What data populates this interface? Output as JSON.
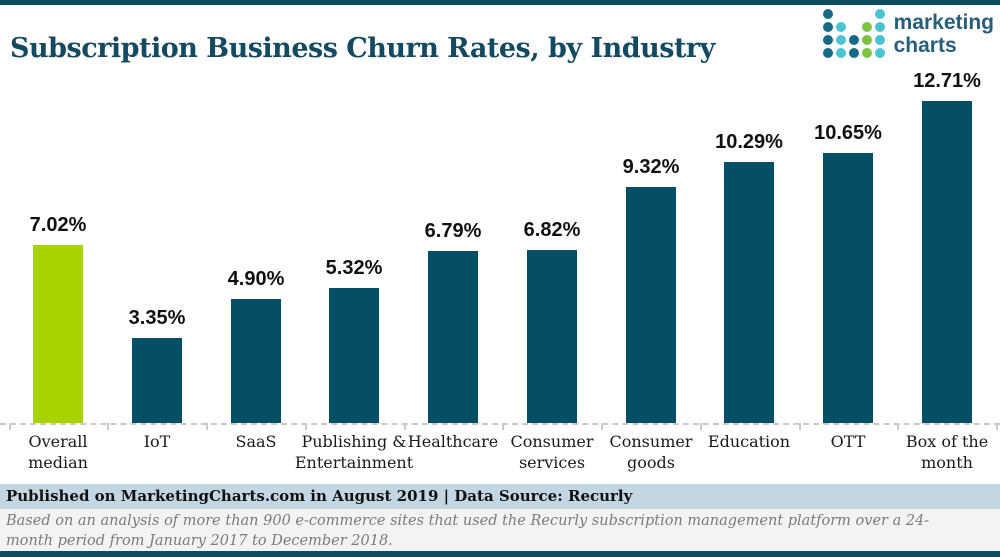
{
  "header": {
    "title": "Subscription Business Churn Rates, by Industry",
    "logo": {
      "line1": "marketing",
      "line2": "charts",
      "dot_colors": {
        "d": "#166A86",
        "t": "#4AC4D3",
        "g": "#7EC241"
      },
      "dots": [
        [
          "d",
          "",
          "",
          "",
          "t"
        ],
        [
          "d",
          "t",
          "",
          "g",
          "t"
        ],
        [
          "d",
          "t",
          "d",
          "g",
          "t"
        ],
        [
          "d",
          "t",
          "d",
          "g",
          "t"
        ]
      ],
      "text_color": "#265E7D"
    }
  },
  "chart_data": {
    "type": "bar",
    "title": "Subscription Business Churn Rates, by Industry",
    "categories": [
      "Overall\nmedian",
      "IoT",
      "SaaS",
      "Publishing &\nEntertainment",
      "Healthcare",
      "Consumer\nservices",
      "Consumer\ngoods",
      "Education",
      "OTT",
      "Box of the\nmonth"
    ],
    "values": [
      7.02,
      3.35,
      4.9,
      5.32,
      6.79,
      6.82,
      9.32,
      10.29,
      10.65,
      12.71
    ],
    "value_labels": [
      "7.02%",
      "3.35%",
      "4.90%",
      "5.32%",
      "6.79%",
      "6.82%",
      "9.32%",
      "10.29%",
      "10.65%",
      "12.71%"
    ],
    "highlight_index": 0,
    "bar_color": "#054F66",
    "highlight_color": "#A7D303",
    "xlabel": "",
    "ylabel": "",
    "ylim": [
      0,
      12.71
    ],
    "grid": false,
    "legend": false,
    "axis_style": "dashed baseline with downward ticks, no y-axis"
  },
  "footer": {
    "source_line": "Published on MarketingCharts.com in August 2019 | Data Source: Recurly",
    "note_line": "Based on an analysis of more than 900 e-commerce sites that used the Recurly subscription management platform over a 24-month period from January 2017 to December 2018."
  },
  "colors": {
    "frame_border": "#0C4D63",
    "title_text": "#134A61",
    "value_text": "#111111",
    "axis_label_text": "#1A1A1A",
    "baseline": "#C9C9C9",
    "source_band_bg": "#C3D7E2",
    "note_band_bg": "#F3F3F1",
    "note_text": "#7B7B7B"
  }
}
